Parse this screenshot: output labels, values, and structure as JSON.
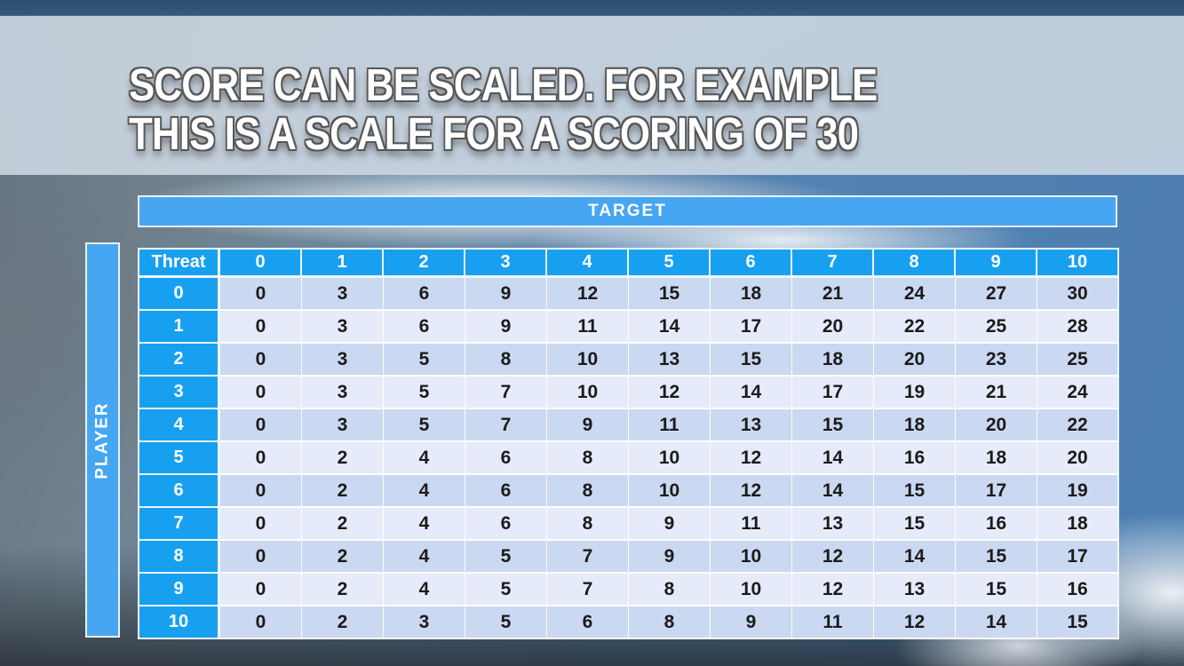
{
  "title": {
    "line1": "SCORE CAN BE SCALED. FOR EXAMPLE",
    "line2": "THIS IS A SCALE FOR A SCORING OF 30"
  },
  "target_label": "TARGET",
  "player_label": "PLAYER",
  "table": {
    "corner_label": "Threat",
    "col_headers": [
      "0",
      "1",
      "2",
      "3",
      "4",
      "5",
      "6",
      "7",
      "8",
      "9",
      "10"
    ],
    "rows": [
      {
        "threat": "0",
        "values": [
          0,
          3,
          6,
          9,
          12,
          15,
          18,
          21,
          24,
          27,
          30
        ]
      },
      {
        "threat": "1",
        "values": [
          0,
          3,
          6,
          9,
          11,
          14,
          17,
          20,
          22,
          25,
          28
        ]
      },
      {
        "threat": "2",
        "values": [
          0,
          3,
          5,
          8,
          10,
          13,
          15,
          18,
          20,
          23,
          25
        ]
      },
      {
        "threat": "3",
        "values": [
          0,
          3,
          5,
          7,
          10,
          12,
          14,
          17,
          19,
          21,
          24
        ]
      },
      {
        "threat": "4",
        "values": [
          0,
          3,
          5,
          7,
          9,
          11,
          13,
          15,
          18,
          20,
          22
        ]
      },
      {
        "threat": "5",
        "values": [
          0,
          2,
          4,
          6,
          8,
          10,
          12,
          14,
          16,
          18,
          20
        ]
      },
      {
        "threat": "6",
        "values": [
          0,
          2,
          4,
          6,
          8,
          10,
          12,
          14,
          15,
          17,
          19
        ]
      },
      {
        "threat": "7",
        "values": [
          0,
          2,
          4,
          6,
          8,
          9,
          11,
          13,
          15,
          16,
          18
        ]
      },
      {
        "threat": "8",
        "values": [
          0,
          2,
          4,
          5,
          7,
          9,
          10,
          12,
          14,
          15,
          17
        ]
      },
      {
        "threat": "9",
        "values": [
          0,
          2,
          4,
          5,
          7,
          8,
          10,
          12,
          13,
          15,
          16
        ]
      },
      {
        "threat": "10",
        "values": [
          0,
          2,
          3,
          5,
          6,
          8,
          9,
          11,
          12,
          14,
          15
        ]
      }
    ]
  },
  "colors": {
    "header_blue": "#18a0f0",
    "bar_blue": "#47a6f1",
    "row_dark": "#cbd8f1",
    "row_light": "#e6ebf9",
    "cell_text": "#1b1b1b"
  }
}
